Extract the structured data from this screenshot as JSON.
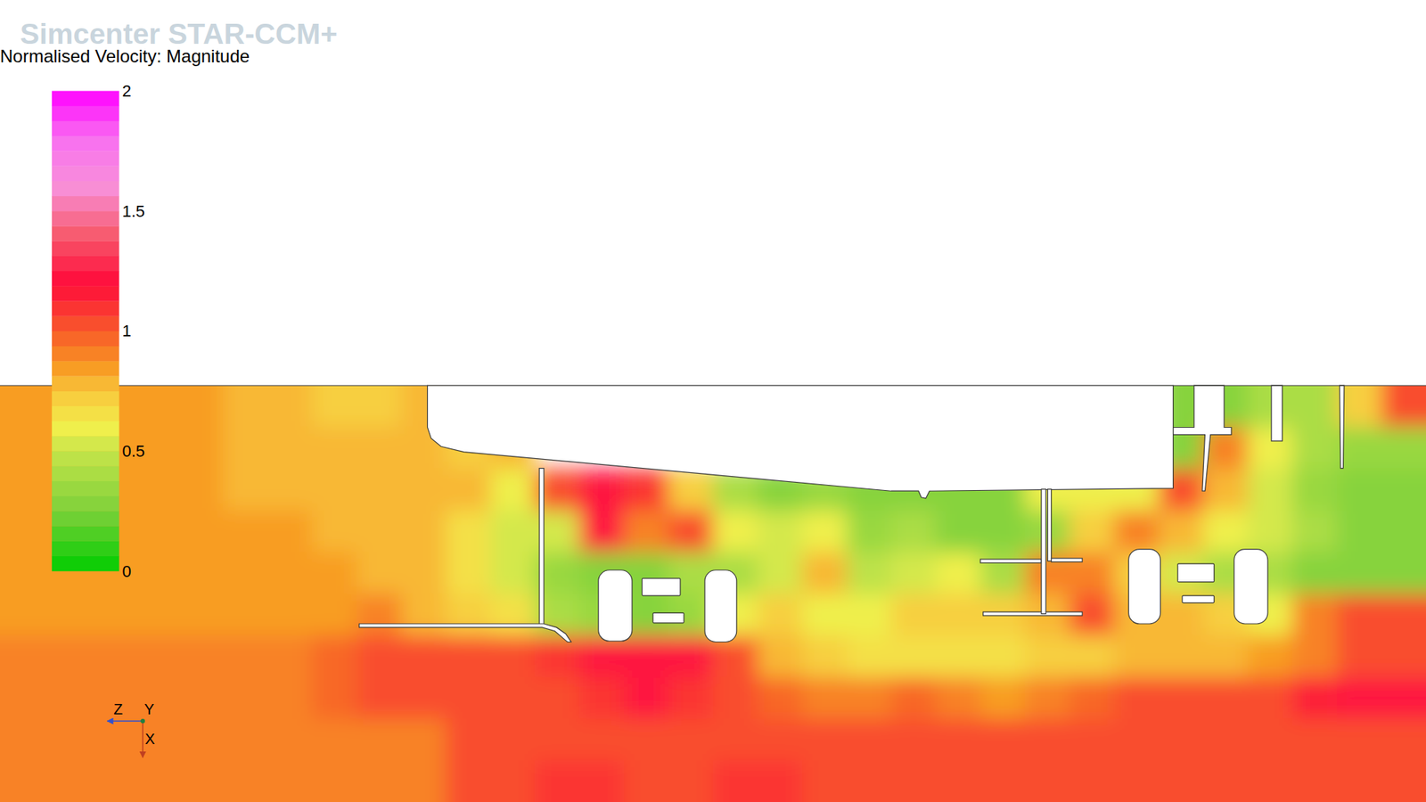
{
  "chart_data": {
    "type": "heatmap",
    "title": "Normalised Velocity: Magnitude",
    "annotations": [
      "Simcenter STAR-CCM+",
      "Z",
      "Y",
      "X"
    ],
    "color_range": [
      0,
      2
    ],
    "color_ticks": [
      0,
      0.5,
      1,
      1.5,
      2
    ],
    "cells": [
      [
        0.85,
        0.85,
        0.85,
        0.85,
        0.85,
        0.8,
        0.8,
        0.7,
        0.7,
        0.8,
        null,
        null,
        null,
        null,
        null,
        null,
        null,
        null,
        null,
        null,
        null,
        null,
        null,
        null,
        null,
        null,
        0.3,
        0.3,
        0.4,
        0.4,
        0.7,
        1.0
      ],
      [
        0.85,
        0.85,
        0.85,
        0.85,
        0.85,
        0.8,
        0.8,
        0.75,
        0.75,
        0.8,
        0.7,
        0.75,
        null,
        null,
        null,
        null,
        null,
        null,
        null,
        null,
        null,
        null,
        null,
        null,
        null,
        null,
        0.3,
        0.9,
        0.6,
        0.4,
        0.35,
        0.35
      ],
      [
        0.85,
        0.85,
        0.85,
        0.85,
        0.85,
        0.8,
        0.8,
        0.8,
        0.8,
        0.8,
        0.75,
        0.6,
        1.0,
        1.2,
        1.1,
        0.7,
        0.4,
        0.3,
        0.35,
        0.3,
        0.3,
        0.3,
        0.3,
        0.6,
        0.6,
        0.6,
        1.0,
        0.8,
        0.5,
        0.35,
        0.3,
        0.3
      ],
      [
        0.85,
        0.85,
        0.85,
        0.85,
        0.85,
        0.85,
        0.85,
        0.8,
        0.8,
        0.75,
        0.65,
        0.55,
        0.5,
        1.2,
        0.9,
        1.0,
        0.6,
        0.5,
        0.6,
        0.35,
        0.4,
        0.3,
        0.3,
        0.35,
        0.7,
        0.9,
        0.8,
        0.6,
        0.5,
        0.4,
        0.3,
        0.3
      ],
      [
        0.85,
        0.85,
        0.85,
        0.85,
        0.85,
        0.85,
        0.85,
        0.85,
        0.8,
        0.75,
        0.65,
        0.55,
        0.35,
        0.3,
        0.3,
        0.4,
        0.4,
        0.5,
        0.8,
        0.45,
        0.5,
        0.6,
        0.4,
        0.9,
        0.9,
        0.7,
        0.5,
        0.4,
        0.4,
        0.3,
        0.3,
        0.25
      ],
      [
        0.85,
        0.85,
        0.85,
        0.85,
        0.85,
        0.85,
        0.85,
        0.85,
        0.9,
        0.75,
        0.7,
        0.65,
        0.4,
        0.35,
        0.3,
        0.35,
        0.6,
        0.7,
        0.6,
        0.6,
        0.7,
        0.7,
        0.7,
        0.8,
        1.0,
        0.8,
        0.8,
        0.7,
        0.6,
        0.9,
        1.0,
        1.0
      ],
      [
        0.9,
        0.9,
        0.9,
        0.9,
        0.9,
        0.9,
        0.9,
        0.95,
        1.0,
        1.0,
        1.0,
        1.0,
        1.1,
        1.2,
        1.2,
        1.2,
        1.0,
        0.8,
        0.7,
        0.65,
        0.65,
        0.65,
        0.65,
        0.7,
        0.7,
        0.75,
        0.75,
        0.8,
        0.85,
        0.9,
        1.0,
        1.0
      ],
      [
        0.9,
        0.9,
        0.9,
        0.9,
        0.9,
        0.9,
        0.9,
        0.95,
        1.0,
        1.0,
        1.0,
        1.0,
        1.0,
        1.1,
        1.2,
        1.1,
        1.0,
        0.95,
        0.9,
        0.9,
        0.95,
        0.9,
        0.85,
        0.9,
        0.95,
        1.0,
        1.0,
        1.0,
        1.05,
        1.15,
        1.2,
        1.2
      ],
      [
        0.9,
        0.9,
        0.9,
        0.9,
        0.9,
        0.9,
        0.9,
        0.9,
        0.9,
        0.9,
        1.05,
        1.05,
        1.05,
        1.0,
        1.0,
        1.05,
        1.05,
        1.0,
        1.0,
        1.0,
        1.0,
        1.0,
        1.0,
        1.05,
        1.0,
        1.0,
        1.0,
        1.0,
        1.0,
        1.0,
        1.05,
        1.05
      ],
      [
        0.9,
        0.9,
        0.9,
        0.9,
        0.9,
        0.9,
        0.9,
        0.9,
        0.9,
        0.9,
        1.05,
        1.05,
        1.1,
        1.1,
        1.05,
        1.05,
        1.1,
        1.1,
        1.05,
        1.0,
        1.0,
        1.0,
        1.0,
        1.0,
        1.0,
        1.0,
        1.0,
        1.0,
        1.0,
        1.0,
        1.0,
        1.0
      ]
    ]
  }
}
